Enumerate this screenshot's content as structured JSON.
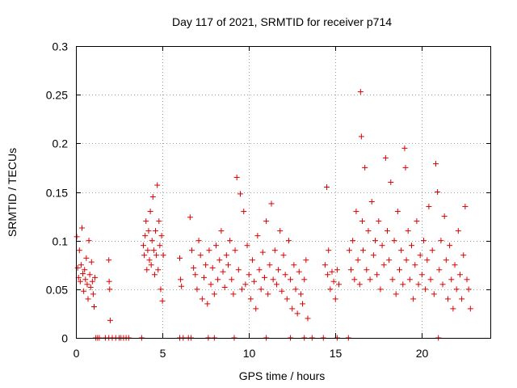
{
  "chart_data": {
    "type": "scatter",
    "title": "Day 117 of 2021, SRMTID for receiver p714",
    "xlabel": "GPS time / hours",
    "ylabel": "SRMTID / TECUs",
    "xlim": [
      0,
      24
    ],
    "ylim": [
      0,
      0.3
    ],
    "x_ticks": [
      0,
      5,
      10,
      15,
      20
    ],
    "x_tick_labels": [
      "0",
      "5",
      "10",
      "15",
      "20"
    ],
    "y_ticks": [
      0,
      0.05,
      0.1,
      0.15,
      0.2,
      0.25,
      0.3
    ],
    "y_tick_labels": [
      "0",
      "0.05",
      "0.1",
      "0.15",
      "0.2",
      "0.25",
      "0.3"
    ],
    "grid": true,
    "marker": "+",
    "color": "#dd0000",
    "series": [
      {
        "name": "SRMTID",
        "points": [
          [
            0.05,
            0.104
          ],
          [
            0.1,
            0.072
          ],
          [
            0.15,
            0.062
          ],
          [
            0.2,
            0.09
          ],
          [
            0.25,
            0.058
          ],
          [
            0.3,
            0.075
          ],
          [
            0.35,
            0.113
          ],
          [
            0.4,
            0.066
          ],
          [
            0.45,
            0.048
          ],
          [
            0.5,
            0.07
          ],
          [
            0.55,
            0.06
          ],
          [
            0.6,
            0.082
          ],
          [
            0.65,
            0.055
          ],
          [
            0.7,
            0.04
          ],
          [
            0.75,
            0.1
          ],
          [
            0.8,
            0.065
          ],
          [
            0.85,
            0.052
          ],
          [
            0.9,
            0.078
          ],
          [
            0.95,
            0.058
          ],
          [
            1.0,
            0.045
          ],
          [
            1.05,
            0.032
          ],
          [
            1.1,
            0.062
          ],
          [
            1.9,
            0.08
          ],
          [
            1.92,
            0.058
          ],
          [
            1.95,
            0.05
          ],
          [
            1.98,
            0.018
          ],
          [
            3.9,
            0.095
          ],
          [
            3.95,
            0.085
          ],
          [
            4.0,
            0.105
          ],
          [
            4.05,
            0.12
          ],
          [
            4.1,
            0.07
          ],
          [
            4.15,
            0.09
          ],
          [
            4.2,
            0.11
          ],
          [
            4.25,
            0.08
          ],
          [
            4.3,
            0.13
          ],
          [
            4.35,
            0.075
          ],
          [
            4.4,
            0.1
          ],
          [
            4.45,
            0.145
          ],
          [
            4.5,
            0.09
          ],
          [
            4.55,
            0.065
          ],
          [
            4.6,
            0.11
          ],
          [
            4.65,
            0.085
          ],
          [
            4.7,
            0.157
          ],
          [
            4.75,
            0.07
          ],
          [
            4.8,
            0.12
          ],
          [
            4.85,
            0.095
          ],
          [
            4.9,
            0.05
          ],
          [
            4.95,
            0.105
          ],
          [
            5.0,
            0.038
          ],
          [
            5.05,
            0.085
          ],
          [
            6.0,
            0.082
          ],
          [
            6.05,
            0.06
          ],
          [
            6.1,
            0.053
          ],
          [
            6.6,
            0.124
          ],
          [
            6.7,
            0.09
          ],
          [
            6.8,
            0.072
          ],
          [
            6.9,
            0.065
          ],
          [
            7.0,
            0.05
          ],
          [
            7.1,
            0.1
          ],
          [
            7.2,
            0.085
          ],
          [
            7.3,
            0.04
          ],
          [
            7.4,
            0.062
          ],
          [
            7.5,
            0.075
          ],
          [
            7.6,
            0.035
          ],
          [
            7.7,
            0.09
          ],
          [
            7.8,
            0.055
          ],
          [
            7.9,
            0.072
          ],
          [
            8.0,
            0.045
          ],
          [
            8.1,
            0.095
          ],
          [
            8.2,
            0.06
          ],
          [
            8.3,
            0.08
          ],
          [
            8.4,
            0.11
          ],
          [
            8.5,
            0.068
          ],
          [
            8.6,
            0.052
          ],
          [
            8.7,
            0.085
          ],
          [
            8.8,
            0.075
          ],
          [
            8.9,
            0.1
          ],
          [
            9.0,
            0.06
          ],
          [
            9.1,
            0.045
          ],
          [
            9.2,
            0.09
          ],
          [
            9.3,
            0.165
          ],
          [
            9.4,
            0.07
          ],
          [
            9.5,
            0.148
          ],
          [
            9.6,
            0.05
          ],
          [
            9.7,
            0.13
          ],
          [
            9.8,
            0.055
          ],
          [
            9.9,
            0.095
          ],
          [
            10.0,
            0.065
          ],
          [
            10.1,
            0.04
          ],
          [
            10.2,
            0.08
          ],
          [
            10.3,
            0.058
          ],
          [
            10.4,
            0.03
          ],
          [
            10.5,
            0.105
          ],
          [
            10.6,
            0.07
          ],
          [
            10.7,
            0.05
          ],
          [
            10.8,
            0.088
          ],
          [
            10.9,
            0.062
          ],
          [
            11.0,
            0.12
          ],
          [
            11.1,
            0.045
          ],
          [
            11.2,
            0.075
          ],
          [
            11.3,
            0.138
          ],
          [
            11.4,
            0.06
          ],
          [
            11.5,
            0.09
          ],
          [
            11.6,
            0.055
          ],
          [
            11.7,
            0.07
          ],
          [
            11.8,
            0.11
          ],
          [
            11.9,
            0.048
          ],
          [
            12.0,
            0.085
          ],
          [
            12.1,
            0.065
          ],
          [
            12.2,
            0.04
          ],
          [
            12.3,
            0.1
          ],
          [
            12.4,
            0.06
          ],
          [
            12.5,
            0.03
          ],
          [
            12.6,
            0.075
          ],
          [
            12.7,
            0.05
          ],
          [
            12.8,
            0.025
          ],
          [
            12.9,
            0.068
          ],
          [
            13.0,
            0.045
          ],
          [
            13.1,
            0.035
          ],
          [
            13.2,
            0.06
          ],
          [
            13.3,
            0.08
          ],
          [
            13.4,
            0.02
          ],
          [
            14.4,
            0.075
          ],
          [
            14.5,
            0.155
          ],
          [
            14.55,
            0.065
          ],
          [
            14.6,
            0.09
          ],
          [
            14.7,
            0.05
          ],
          [
            14.8,
            0.068
          ],
          [
            14.9,
            0.058
          ],
          [
            15.0,
            0.04
          ],
          [
            15.1,
            0.07
          ],
          [
            15.2,
            0.055
          ],
          [
            15.8,
            0.09
          ],
          [
            15.9,
            0.07
          ],
          [
            16.0,
            0.1
          ],
          [
            16.1,
            0.06
          ],
          [
            16.2,
            0.13
          ],
          [
            16.3,
            0.08
          ],
          [
            16.4,
            0.055
          ],
          [
            16.45,
            0.253
          ],
          [
            16.5,
            0.207
          ],
          [
            16.55,
            0.12
          ],
          [
            16.6,
            0.09
          ],
          [
            16.7,
            0.175
          ],
          [
            16.8,
            0.07
          ],
          [
            16.9,
            0.11
          ],
          [
            17.0,
            0.06
          ],
          [
            17.1,
            0.14
          ],
          [
            17.2,
            0.085
          ],
          [
            17.3,
            0.1
          ],
          [
            17.4,
            0.065
          ],
          [
            17.5,
            0.12
          ],
          [
            17.6,
            0.05
          ],
          [
            17.7,
            0.095
          ],
          [
            17.8,
            0.075
          ],
          [
            17.9,
            0.185
          ],
          [
            18.0,
            0.11
          ],
          [
            18.1,
            0.08
          ],
          [
            18.2,
            0.16
          ],
          [
            18.3,
            0.06
          ],
          [
            18.4,
            0.1
          ],
          [
            18.5,
            0.045
          ],
          [
            18.6,
            0.13
          ],
          [
            18.7,
            0.07
          ],
          [
            18.8,
            0.09
          ],
          [
            18.9,
            0.055
          ],
          [
            19.0,
            0.195
          ],
          [
            19.05,
            0.175
          ],
          [
            19.1,
            0.08
          ],
          [
            19.2,
            0.11
          ],
          [
            19.3,
            0.06
          ],
          [
            19.4,
            0.095
          ],
          [
            19.5,
            0.04
          ],
          [
            19.6,
            0.075
          ],
          [
            19.7,
            0.12
          ],
          [
            19.8,
            0.055
          ],
          [
            19.9,
            0.085
          ],
          [
            20.0,
            0.065
          ],
          [
            20.1,
            0.1
          ],
          [
            20.2,
            0.05
          ],
          [
            20.3,
            0.08
          ],
          [
            20.4,
            0.135
          ],
          [
            20.5,
            0.06
          ],
          [
            20.6,
            0.09
          ],
          [
            20.7,
            0.045
          ],
          [
            20.8,
            0.179
          ],
          [
            20.9,
            0.15
          ],
          [
            21.0,
            0.07
          ],
          [
            21.1,
            0.1
          ],
          [
            21.2,
            0.055
          ],
          [
            21.3,
            0.125
          ],
          [
            21.4,
            0.08
          ],
          [
            21.5,
            0.04
          ],
          [
            21.6,
            0.095
          ],
          [
            21.7,
            0.06
          ],
          [
            21.8,
            0.03
          ],
          [
            21.9,
            0.075
          ],
          [
            22.0,
            0.05
          ],
          [
            22.1,
            0.11
          ],
          [
            22.2,
            0.065
          ],
          [
            22.3,
            0.04
          ],
          [
            22.4,
            0.085
          ],
          [
            22.5,
            0.135
          ],
          [
            22.6,
            0.06
          ],
          [
            22.7,
            0.05
          ],
          [
            22.8,
            0.03
          ]
        ]
      }
    ],
    "zero_points_x": [
      1.15,
      1.25,
      1.35,
      1.7,
      1.9,
      2.1,
      2.3,
      2.5,
      2.6,
      2.75,
      2.9,
      3.05,
      3.8,
      6.0,
      6.2,
      6.5,
      6.65,
      7.65,
      8.0,
      9.15,
      11.0,
      12.4,
      13.2,
      13.65,
      14.3,
      15.1,
      15.75,
      20.95
    ]
  }
}
